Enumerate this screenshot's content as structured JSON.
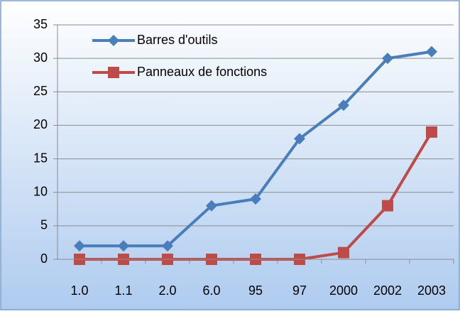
{
  "chart_data": {
    "type": "line",
    "categories": [
      "1.0",
      "1.1",
      "2.0",
      "6.0",
      "95",
      "97",
      "2000",
      "2002",
      "2003"
    ],
    "series": [
      {
        "name": "Barres d'outils",
        "color": "#4a7ebb",
        "marker": "diamond",
        "values": [
          2,
          2,
          2,
          8,
          9,
          18,
          23,
          30,
          31
        ]
      },
      {
        "name": "Panneaux de fonctions",
        "color": "#be4b48",
        "marker": "square",
        "values": [
          0,
          0,
          0,
          0,
          0,
          0,
          1,
          8,
          19
        ]
      }
    ],
    "ylim": [
      0,
      35
    ],
    "yticks": [
      0,
      5,
      10,
      15,
      20,
      25,
      30,
      35
    ],
    "grid": true,
    "legend": "upper left"
  }
}
